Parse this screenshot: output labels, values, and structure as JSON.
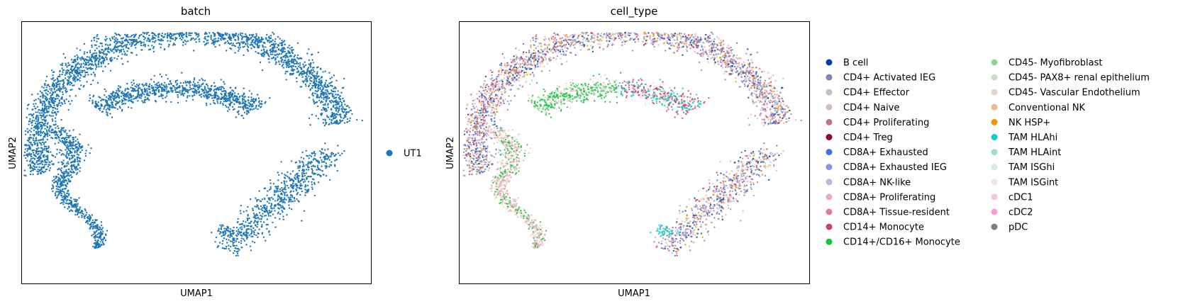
{
  "chart_data": [
    {
      "type": "scatter",
      "title": "batch",
      "xlabel": "UMAP1",
      "ylabel": "UMAP2",
      "legend_position": "right",
      "legend": [
        {
          "name": "UT1",
          "color": "#1f77b4"
        }
      ]
    },
    {
      "type": "scatter",
      "title": "cell_type",
      "xlabel": "UMAP1",
      "ylabel": "UMAP2",
      "legend_position": "right",
      "legend": [
        {
          "name": "B cell",
          "color": "#023fa5"
        },
        {
          "name": "CD4+ Activated IEG",
          "color": "#7d87b9"
        },
        {
          "name": "CD4+ Effector",
          "color": "#bec1d4"
        },
        {
          "name": "CD4+ Naive",
          "color": "#d6bcc0"
        },
        {
          "name": "CD4+ Proliferating",
          "color": "#bb7784"
        },
        {
          "name": "CD4+ Treg",
          "color": "#8e063b"
        },
        {
          "name": "CD8A+ Exhausted",
          "color": "#4a6fe3"
        },
        {
          "name": "CD8A+ Exhausted IEG",
          "color": "#8595e1"
        },
        {
          "name": "CD8A+ NK-like",
          "color": "#b5bbe3"
        },
        {
          "name": "CD8A+ Proliferating",
          "color": "#e6afb9"
        },
        {
          "name": "CD8A+ Tissue-resident",
          "color": "#e07b91"
        },
        {
          "name": "CD14+ Monocyte",
          "color": "#d33f6a"
        },
        {
          "name": "CD14+/CD16+ Monocyte",
          "color": "#11c638"
        },
        {
          "name": "CD45- Myofibroblast",
          "color": "#8dd593"
        },
        {
          "name": "CD45- PAX8+ renal epithelium",
          "color": "#c6dec7"
        },
        {
          "name": "CD45- Vascular Endothelium",
          "color": "#ead3c6"
        },
        {
          "name": "Conventional NK",
          "color": "#f0b98d"
        },
        {
          "name": "NK HSP+",
          "color": "#ef9708"
        },
        {
          "name": "TAM HLAhi",
          "color": "#0fcfc0"
        },
        {
          "name": "TAM HLAint",
          "color": "#9cded6"
        },
        {
          "name": "TAM ISGhi",
          "color": "#d5eae7"
        },
        {
          "name": "TAM ISGint",
          "color": "#f3e1eb"
        },
        {
          "name": "cDC1",
          "color": "#f6c4e1"
        },
        {
          "name": "cDC2",
          "color": "#f79cd4"
        },
        {
          "name": "pDC",
          "color": "#7f7f7f"
        }
      ]
    }
  ]
}
